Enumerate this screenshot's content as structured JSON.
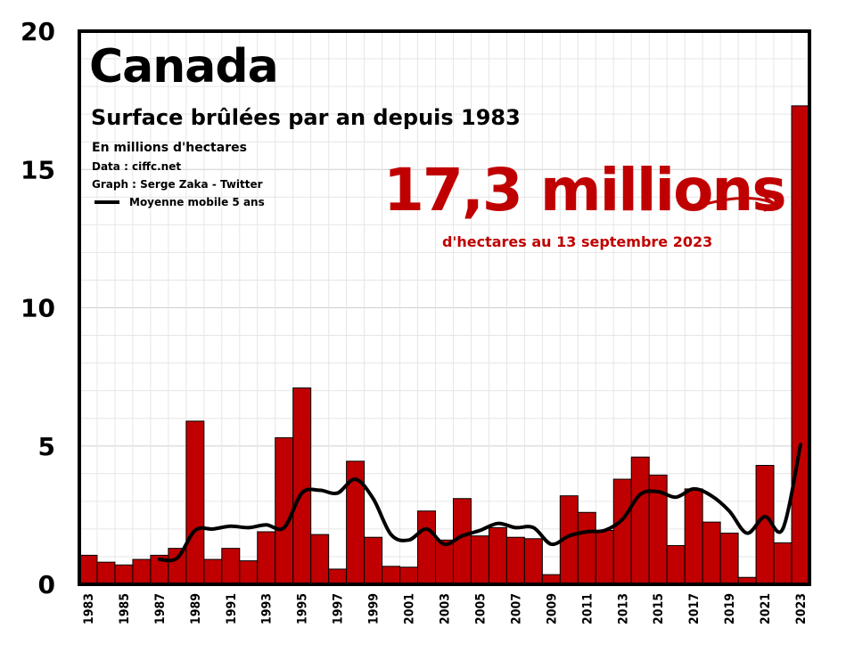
{
  "chart_data": {
    "type": "bar",
    "title": "Canada",
    "subtitle": "Surface brûlées par an depuis 1983",
    "unit_note": "En millions d'hectares",
    "source": "Data : ciffc.net",
    "credit": "Graph : Serge Zaka - Twitter",
    "legend_label": "Moyenne mobile 5 ans",
    "callout_value": "17,3 millions",
    "callout_sub": "d'hectares au 13 septembre 2023",
    "ylim": [
      0,
      20
    ],
    "yticks": [
      0,
      5,
      10,
      15,
      20
    ],
    "categories": [
      "1983",
      "1984",
      "1985",
      "1986",
      "1987",
      "1988",
      "1989",
      "1990",
      "1991",
      "1992",
      "1993",
      "1994",
      "1995",
      "1996",
      "1997",
      "1998",
      "1999",
      "2000",
      "2001",
      "2002",
      "2003",
      "2004",
      "2005",
      "2006",
      "2007",
      "2008",
      "2009",
      "2010",
      "2011",
      "2012",
      "2013",
      "2014",
      "2015",
      "2016",
      "2017",
      "2018",
      "2019",
      "2020",
      "2021",
      "2022",
      "2023"
    ],
    "xtick_labels": [
      "1983",
      "1985",
      "1987",
      "1989",
      "1991",
      "1993",
      "1995",
      "1997",
      "1999",
      "2001",
      "2003",
      "2005",
      "2007",
      "2009",
      "2011",
      "2013",
      "2015",
      "2017",
      "2019",
      "2021",
      "2023"
    ],
    "values": [
      1.05,
      0.8,
      0.7,
      0.9,
      1.05,
      1.3,
      5.9,
      0.9,
      1.3,
      0.85,
      1.9,
      5.3,
      7.1,
      1.8,
      0.55,
      4.45,
      1.7,
      0.65,
      0.62,
      2.65,
      1.6,
      3.1,
      1.75,
      2.05,
      1.7,
      1.65,
      0.35,
      3.2,
      2.6,
      1.95,
      3.8,
      4.6,
      3.95,
      1.4,
      3.45,
      2.25,
      1.85,
      0.25,
      4.3,
      1.5,
      17.3
    ],
    "series": [
      {
        "name": "Moyenne mobile 5 ans",
        "x": [
          "1987",
          "1988",
          "1989",
          "1990",
          "1991",
          "1992",
          "1993",
          "1994",
          "1995",
          "1996",
          "1997",
          "1998",
          "1999",
          "2000",
          "2001",
          "2002",
          "2003",
          "2004",
          "2005",
          "2006",
          "2007",
          "2008",
          "2009",
          "2010",
          "2011",
          "2012",
          "2013",
          "2014",
          "2015",
          "2016",
          "2017",
          "2018",
          "2019",
          "2020",
          "2021",
          "2022",
          "2023"
        ],
        "values": [
          0.9,
          0.95,
          1.95,
          2.0,
          2.1,
          2.05,
          2.15,
          2.05,
          3.3,
          3.4,
          3.3,
          3.8,
          3.1,
          1.8,
          1.6,
          2.0,
          1.45,
          1.75,
          1.95,
          2.2,
          2.05,
          2.05,
          1.45,
          1.75,
          1.9,
          1.95,
          2.35,
          3.25,
          3.35,
          3.15,
          3.45,
          3.2,
          2.65,
          1.85,
          2.45,
          2.0,
          5.05
        ]
      }
    ]
  }
}
